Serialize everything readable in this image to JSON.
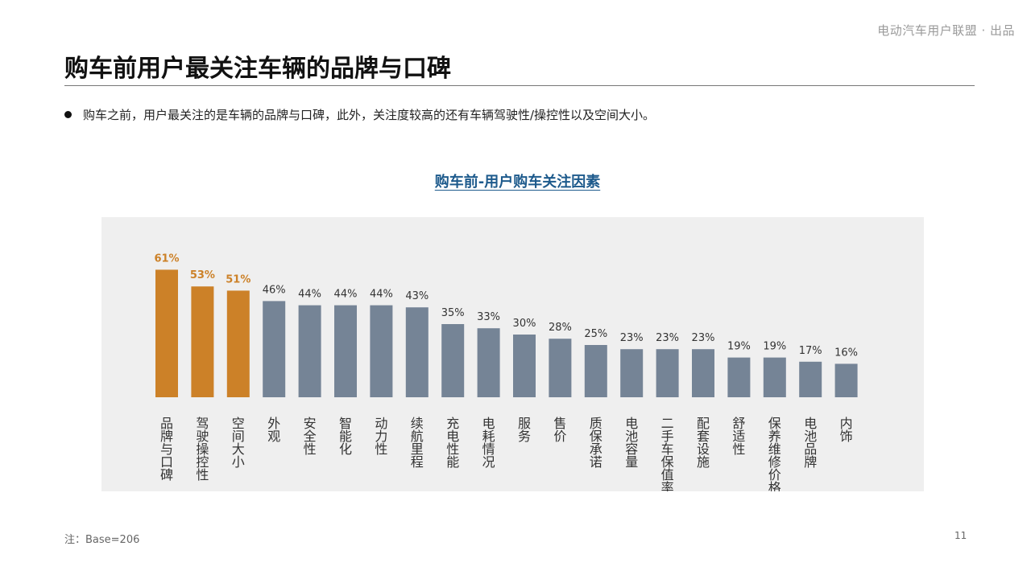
{
  "header": {
    "brand": "电动汽车用户联盟 · 出品",
    "title": "购车前用户最关注车辆的品牌与口碑"
  },
  "bullet": {
    "text": "购车之前，用户最关注的是车辆的品牌与口碑，此外，关注度较高的还有车辆驾驶性/操控性以及空间大小。"
  },
  "chart_data": {
    "type": "bar",
    "title": "购车前-用户购车关注因素",
    "categories": [
      "品牌与口碑",
      "驾驶操控性",
      "空间大小",
      "外观",
      "安全性",
      "智能化",
      "动力性",
      "续航里程",
      "充电性能",
      "电耗情况",
      "服务",
      "售价",
      "质保承诺",
      "电池容量",
      "二手车保值率",
      "配套设施",
      "舒适性",
      "保养维修价格",
      "电池品牌",
      "内饰"
    ],
    "values": [
      61,
      53,
      51,
      46,
      44,
      44,
      44,
      43,
      35,
      33,
      30,
      28,
      25,
      23,
      23,
      23,
      19,
      19,
      17,
      16
    ],
    "value_labels": [
      "61%",
      "53%",
      "51%",
      "46%",
      "44%",
      "44%",
      "44%",
      "43%",
      "35%",
      "33%",
      "30%",
      "28%",
      "25%",
      "23%",
      "23%",
      "23%",
      "19%",
      "19%",
      "17%",
      "16%"
    ],
    "ylim": [
      0,
      70
    ],
    "grid": false,
    "highlight_count": 3,
    "colors": {
      "highlight": "#cc8128",
      "default": "#758496",
      "highlight_label": "#cc8128",
      "default_label": "#333333"
    }
  },
  "footer": {
    "note": "注：Base=206",
    "page": "11"
  }
}
